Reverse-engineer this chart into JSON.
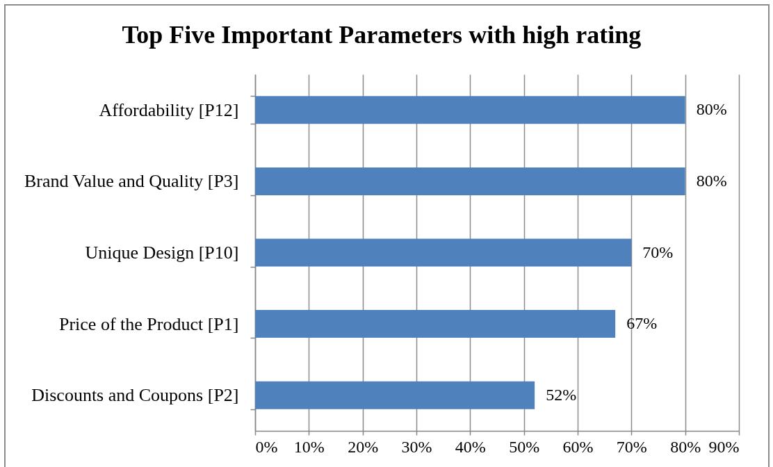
{
  "chart_data": {
    "type": "bar",
    "orientation": "horizontal",
    "title": "Top Five Important Parameters with high rating",
    "categories": [
      "Affordability [P12]",
      "Brand Value and Quality [P3]",
      "Unique Design [P10]",
      "Price of the Product [P1]",
      "Discounts and Coupons [P2]"
    ],
    "values": [
      80,
      80,
      70,
      67,
      52
    ],
    "color": "#4f81bd",
    "value_labels": [
      "80%",
      "80%",
      "70%",
      "67%",
      "52%"
    ],
    "xlim": [
      0,
      90
    ],
    "xticks": [
      {
        "value": 0,
        "label": "0%"
      },
      {
        "value": 10,
        "label": "10%"
      },
      {
        "value": 20,
        "label": "20%"
      },
      {
        "value": 30,
        "label": "30%"
      },
      {
        "value": 40,
        "label": "40%"
      },
      {
        "value": 50,
        "label": "50%"
      },
      {
        "value": 60,
        "label": "60%"
      },
      {
        "value": 70,
        "label": "70%"
      },
      {
        "value": 80,
        "label": "80%"
      },
      {
        "value": 90,
        "label": "90%"
      }
    ],
    "grid": "x"
  }
}
